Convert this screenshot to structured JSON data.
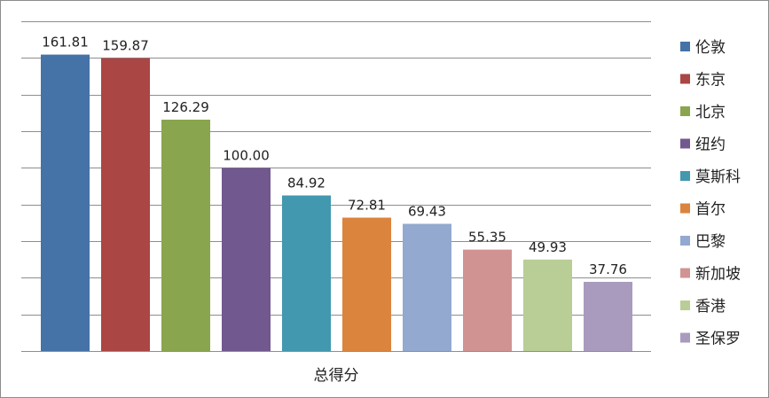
{
  "chart_data": {
    "type": "bar",
    "title": "",
    "xlabel": "总得分",
    "ylabel": "",
    "ylim": [
      0,
      180
    ],
    "grid": true,
    "legend_position": "right",
    "categories": [
      "总得分"
    ],
    "series": [
      {
        "name": "伦敦",
        "value": 161.81,
        "label": "161.81",
        "color": "#4572A7"
      },
      {
        "name": "东京",
        "value": 159.87,
        "label": "159.87",
        "color": "#AA4643"
      },
      {
        "name": "北京",
        "value": 126.29,
        "label": "126.29",
        "color": "#89A54E"
      },
      {
        "name": "纽约",
        "value": 100.0,
        "label": "100.00",
        "color": "#71588F"
      },
      {
        "name": "莫斯科",
        "value": 84.92,
        "label": "84.92",
        "color": "#4198AF"
      },
      {
        "name": "首尔",
        "value": 72.81,
        "label": "72.81",
        "color": "#DB843D"
      },
      {
        "name": "巴黎",
        "value": 69.43,
        "label": "69.43",
        "color": "#93A9CF"
      },
      {
        "name": "新加坡",
        "value": 55.35,
        "label": "55.35",
        "color": "#D19392"
      },
      {
        "name": "香港",
        "value": 49.93,
        "label": "49.93",
        "color": "#B9CD96"
      },
      {
        "name": "圣保罗",
        "value": 37.76,
        "label": "37.76",
        "color": "#A99BBD"
      }
    ]
  }
}
